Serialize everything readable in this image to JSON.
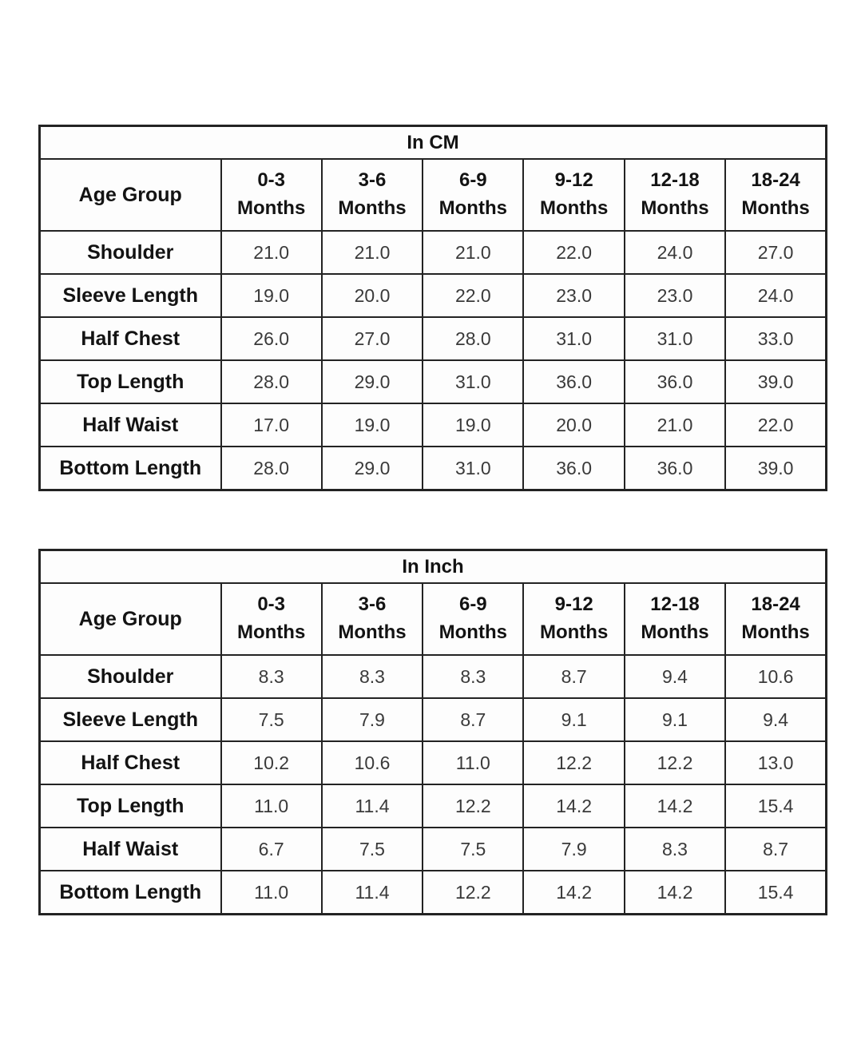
{
  "chart_data": [
    {
      "type": "table",
      "title": "In CM",
      "unit": "cm",
      "corner_header": "Age Group",
      "column_headers": [
        {
          "range": "0-3",
          "word": "Months"
        },
        {
          "range": "3-6",
          "word": "Months"
        },
        {
          "range": "6-9",
          "word": "Months"
        },
        {
          "range": "9-12",
          "word": "Months"
        },
        {
          "range": "12-18",
          "word": "Months"
        },
        {
          "range": "18-24",
          "word": "Months"
        }
      ],
      "rows": [
        {
          "label": "Shoulder",
          "values": [
            "21.0",
            "21.0",
            "21.0",
            "22.0",
            "24.0",
            "27.0"
          ]
        },
        {
          "label": "Sleeve Length",
          "values": [
            "19.0",
            "20.0",
            "22.0",
            "23.0",
            "23.0",
            "24.0"
          ]
        },
        {
          "label": "Half Chest",
          "values": [
            "26.0",
            "27.0",
            "28.0",
            "31.0",
            "31.0",
            "33.0"
          ]
        },
        {
          "label": "Top Length",
          "values": [
            "28.0",
            "29.0",
            "31.0",
            "36.0",
            "36.0",
            "39.0"
          ]
        },
        {
          "label": "Half Waist",
          "values": [
            "17.0",
            "19.0",
            "19.0",
            "20.0",
            "21.0",
            "22.0"
          ]
        },
        {
          "label": "Bottom Length",
          "values": [
            "28.0",
            "29.0",
            "31.0",
            "36.0",
            "36.0",
            "39.0"
          ]
        }
      ]
    },
    {
      "type": "table",
      "title": "In Inch",
      "unit": "inch",
      "corner_header": "Age Group",
      "column_headers": [
        {
          "range": "0-3",
          "word": "Months"
        },
        {
          "range": "3-6",
          "word": "Months"
        },
        {
          "range": "6-9",
          "word": "Months"
        },
        {
          "range": "9-12",
          "word": "Months"
        },
        {
          "range": "12-18",
          "word": "Months"
        },
        {
          "range": "18-24",
          "word": "Months"
        }
      ],
      "rows": [
        {
          "label": "Shoulder",
          "values": [
            "8.3",
            "8.3",
            "8.3",
            "8.7",
            "9.4",
            "10.6"
          ]
        },
        {
          "label": "Sleeve Length",
          "values": [
            "7.5",
            "7.9",
            "8.7",
            "9.1",
            "9.1",
            "9.4"
          ]
        },
        {
          "label": "Half Chest",
          "values": [
            "10.2",
            "10.6",
            "11.0",
            "12.2",
            "12.2",
            "13.0"
          ]
        },
        {
          "label": "Top Length",
          "values": [
            "11.0",
            "11.4",
            "12.2",
            "14.2",
            "14.2",
            "15.4"
          ]
        },
        {
          "label": "Half Waist",
          "values": [
            "6.7",
            "7.5",
            "7.5",
            "7.9",
            "8.3",
            "8.7"
          ]
        },
        {
          "label": "Bottom Length",
          "values": [
            "11.0",
            "11.4",
            "12.2",
            "14.2",
            "14.2",
            "15.4"
          ]
        }
      ]
    }
  ],
  "colors": {
    "page_background": "#ffffff",
    "table_background": "#fdfdfd",
    "border": "#232323",
    "label_text": "#131313",
    "value_text": "#3a3a3a"
  }
}
